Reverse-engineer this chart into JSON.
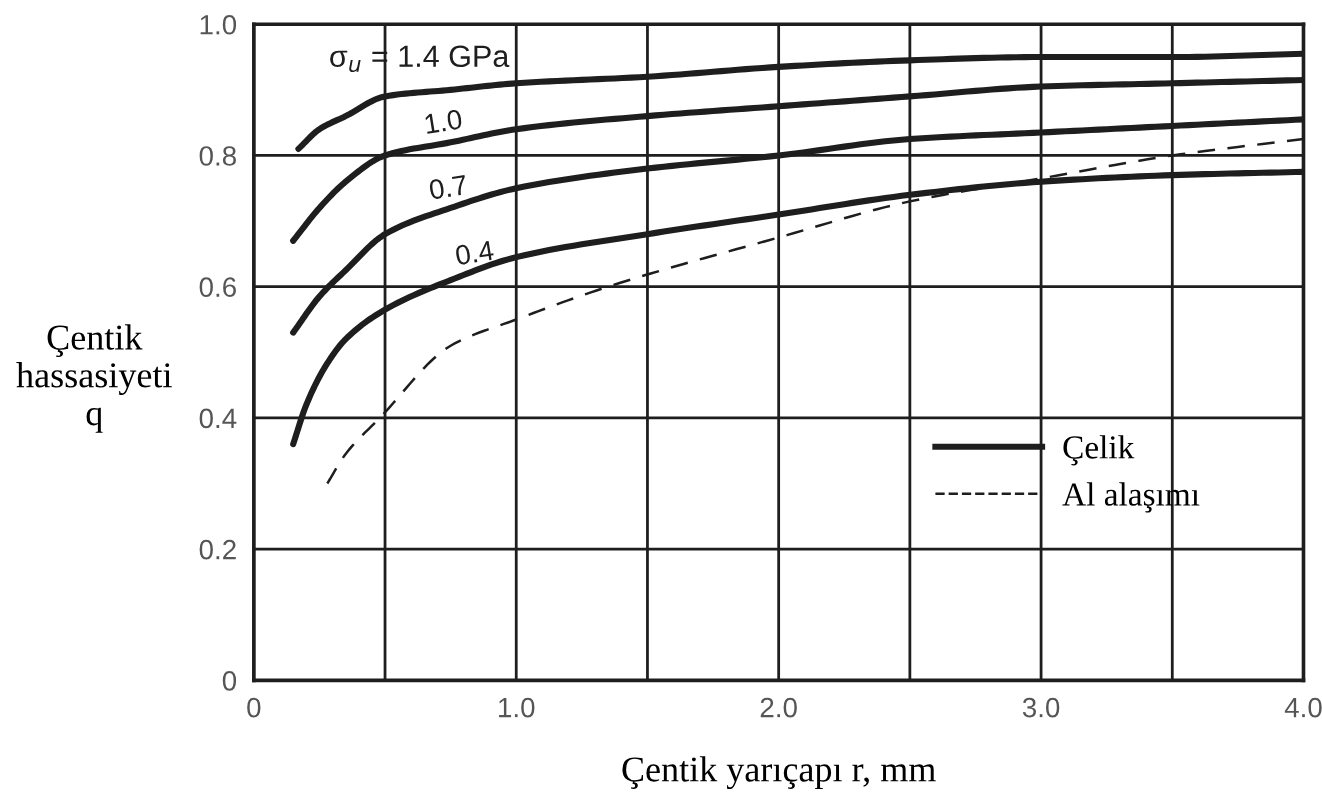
{
  "chart_data": {
    "type": "line",
    "xlabel": "Çentik yarıçapı r, mm",
    "ylabel": "Çentik\nhassasiyeti\nq",
    "xlim": [
      0,
      4
    ],
    "ylim": [
      0,
      1
    ],
    "xticks": [
      0,
      {
        "value": 0.5,
        "label": null
      },
      {
        "value": 1,
        "label": "1.0"
      },
      {
        "value": 1.5,
        "label": null
      },
      {
        "value": 2,
        "label": "2.0"
      },
      {
        "value": 2.5,
        "label": null
      },
      {
        "value": 3,
        "label": "3.0"
      },
      {
        "value": 3.5,
        "label": null
      },
      {
        "value": 4,
        "label": "4.0"
      }
    ],
    "yticks": [
      0,
      0.2,
      0.4,
      0.6,
      0.8,
      {
        "value": 1,
        "label": "1.0"
      }
    ],
    "grid": true,
    "legend": "lower right",
    "series": [
      {
        "name": "Çelik",
        "color": "#1e1e1e",
        "line_style": "solid",
        "x": [
          0.17,
          0.25,
          0.35,
          0.5,
          0.75,
          1.0,
          1.5,
          2.0,
          2.5,
          3.0,
          3.5,
          4.0
        ],
        "values": [
          0.81,
          0.84,
          0.86,
          0.89,
          0.9,
          0.91,
          0.92,
          0.935,
          0.945,
          0.95,
          0.95,
          0.955
        ]
      },
      {
        "color": "#1e1e1e",
        "line_style": "solid",
        "x": [
          0.15,
          0.25,
          0.35,
          0.5,
          0.75,
          1.0,
          1.5,
          2.0,
          2.5,
          3.0,
          3.5,
          4.0
        ],
        "values": [
          0.67,
          0.72,
          0.76,
          0.8,
          0.82,
          0.84,
          0.86,
          0.875,
          0.89,
          0.905,
          0.91,
          0.915
        ]
      },
      {
        "color": "#1e1e1e",
        "line_style": "solid",
        "x": [
          0.15,
          0.25,
          0.35,
          0.5,
          0.75,
          1.0,
          1.5,
          2.0,
          2.5,
          3.0,
          3.5,
          4.0
        ],
        "values": [
          0.53,
          0.585,
          0.625,
          0.68,
          0.72,
          0.75,
          0.78,
          0.8,
          0.825,
          0.835,
          0.845,
          0.855
        ]
      },
      {
        "color": "#1e1e1e",
        "line_style": "solid",
        "x": [
          0.15,
          0.2,
          0.275,
          0.35,
          0.5,
          0.75,
          1.0,
          1.5,
          2.0,
          2.5,
          3.0,
          3.5,
          4.0
        ],
        "values": [
          0.36,
          0.42,
          0.48,
          0.52,
          0.565,
          0.61,
          0.645,
          0.68,
          0.71,
          0.74,
          0.76,
          0.77,
          0.775
        ]
      },
      {
        "name": "Al alaşımı",
        "color": "#1e1e1e",
        "line_style": "dashed",
        "x": [
          0.28,
          0.35,
          0.48,
          0.75,
          1.0,
          1.35,
          2.0,
          2.5,
          3.0,
          3.5,
          4.0
        ],
        "values": [
          0.3,
          0.345,
          0.4,
          0.51,
          0.55,
          0.6,
          0.675,
          0.73,
          0.765,
          0.8,
          0.825
        ]
      }
    ],
    "annotations": [
      {
        "text": "σ$_{u}$ = 1.4 GPa",
        "x": 0.63,
        "y": 0.9
      },
      {
        "text": "1.0",
        "x": 0.73,
        "y": 0.82
      },
      {
        "text": "0.7",
        "x": 0.75,
        "y": 0.72
      },
      {
        "text": "0.4",
        "x": 0.85,
        "y": 0.62
      }
    ]
  }
}
